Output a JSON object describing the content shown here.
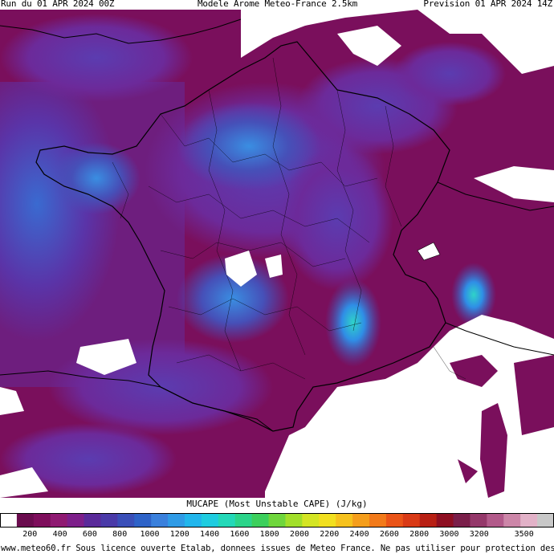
{
  "header": {
    "run": "Run du 01 APR 2024 00Z",
    "model": "Modele Arome Meteo-France 2.5km",
    "forecast": "Prevision 01 APR 2024 14Z"
  },
  "map": {
    "field": "MUCAPE",
    "land_background_color": "#7e0c5a",
    "sea_background_color": "#5a2a9a",
    "no_data_color": "#ffffff",
    "border_color": "#000000"
  },
  "legend": {
    "title": "MUCAPE (Most Unstable CAPE) (J/kg)",
    "unit": "J/kg",
    "max_value": 3700,
    "tick_labels": [
      "200",
      "400",
      "600",
      "800",
      "1000",
      "1200",
      "1400",
      "1600",
      "1800",
      "2000",
      "2200",
      "2400",
      "2600",
      "2800",
      "3000",
      "3200",
      "3500"
    ],
    "tick_values": [
      200,
      400,
      600,
      800,
      1000,
      1200,
      1400,
      1600,
      1800,
      2000,
      2200,
      2400,
      2600,
      2800,
      3000,
      3200,
      3500
    ],
    "colors": [
      "#ffffff",
      "#6a0c4e",
      "#7e0e5c",
      "#8f1a72",
      "#7d1f8a",
      "#5a2a9a",
      "#4a3aa8",
      "#3a4fb8",
      "#2e63c8",
      "#3a80dc",
      "#2f9be6",
      "#22b6ec",
      "#1fcce0",
      "#24d8b8",
      "#2cd48a",
      "#3ccf5c",
      "#6fd63c",
      "#a2df2a",
      "#d4e524",
      "#f2e020",
      "#f6c21e",
      "#f59e1c",
      "#f27a1a",
      "#ea5418",
      "#d93a16",
      "#b82014",
      "#8e0f22",
      "#7a1f4a",
      "#94386a",
      "#b25a8a",
      "#cc86a8",
      "#e2b2c8",
      "#c8c8c8"
    ]
  },
  "footer": {
    "text": "www.meteo60.fr Sous licence ouverte Etalab, donnees issues de Meteo France. Ne pas utiliser pour protection des biens et personnes"
  }
}
